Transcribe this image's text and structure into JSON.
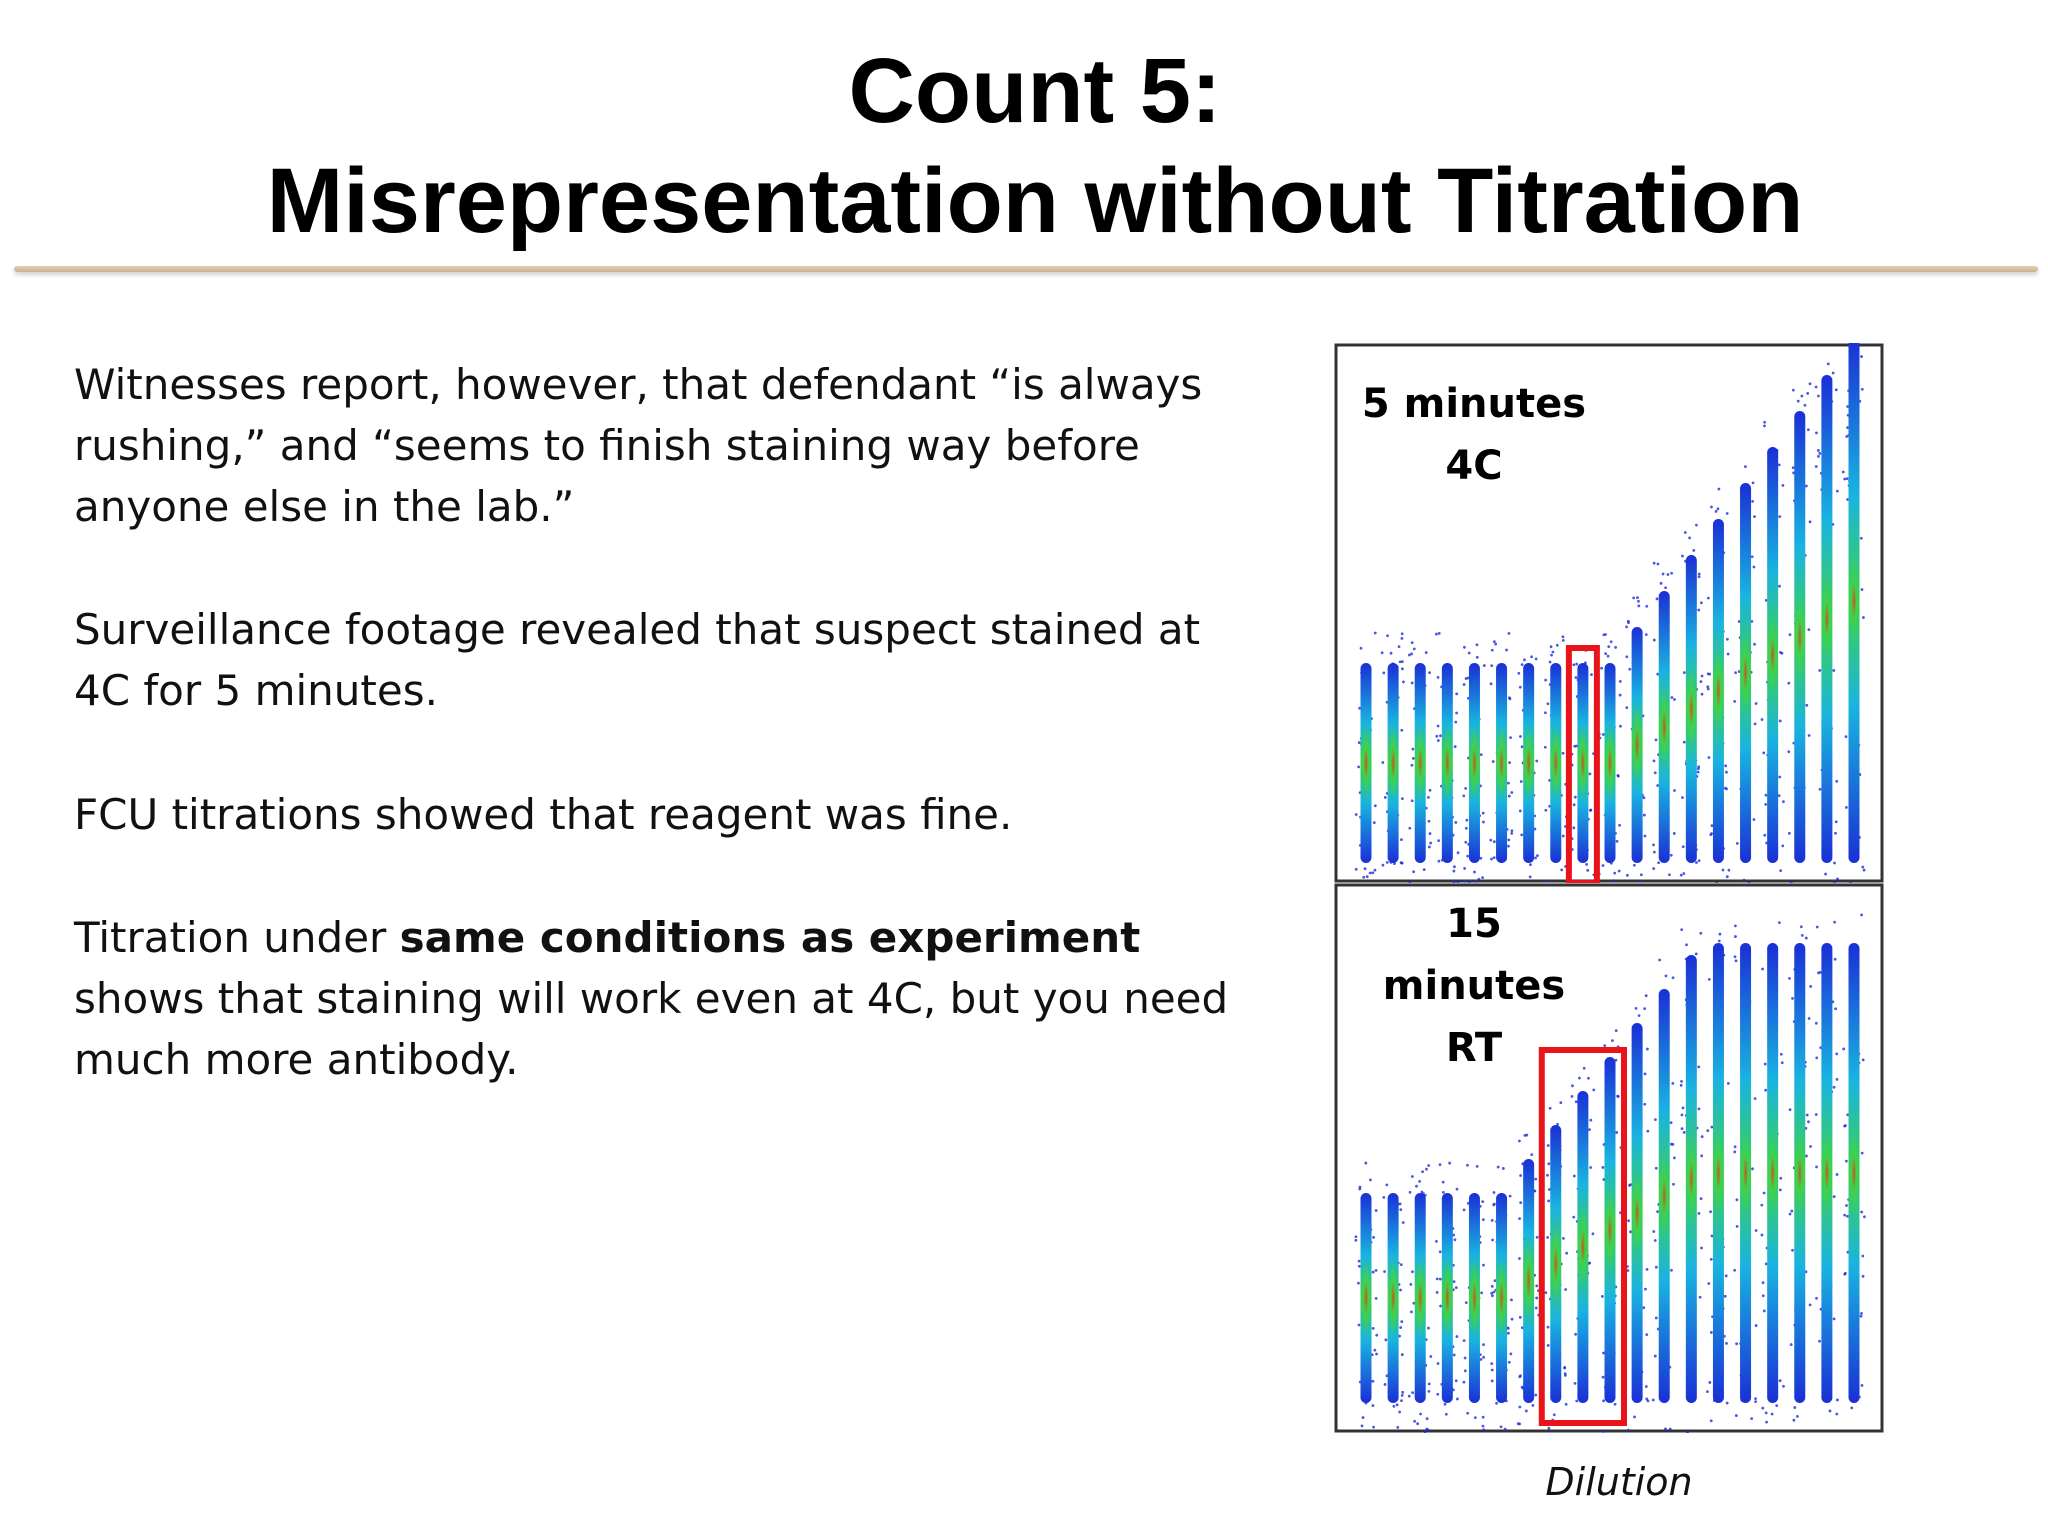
{
  "slide": {
    "title_line1": "Count 5:",
    "title_line2": "Misrepresentation without Titration"
  },
  "body": {
    "p1": "Witnesses report, however, that defendant “is always rushing,” and “seems to finish staining way before anyone else in the lab.”",
    "p2": "Surveillance footage revealed that suspect stained at 4C for 5 minutes.",
    "p3": "FCU titrations showed that reagent was fine.",
    "p4_pre": "Titration under ",
    "p4_bold": "same conditions as experiment",
    "p4_post": " shows that staining will work even at 4C, but you need much more antibody."
  },
  "figure": {
    "top_label_line1": "5 minutes",
    "top_label_line2": "4C",
    "bottom_label_line1": "15 minutes",
    "bottom_label_line2": "RT",
    "xlabel": "Dilution",
    "highlight_color": "#e8141a",
    "colors": {
      "low": "#1a2fd6",
      "mid": "#19b4e0",
      "hi": "#3fd24a",
      "core": "#d2501e"
    }
  }
}
